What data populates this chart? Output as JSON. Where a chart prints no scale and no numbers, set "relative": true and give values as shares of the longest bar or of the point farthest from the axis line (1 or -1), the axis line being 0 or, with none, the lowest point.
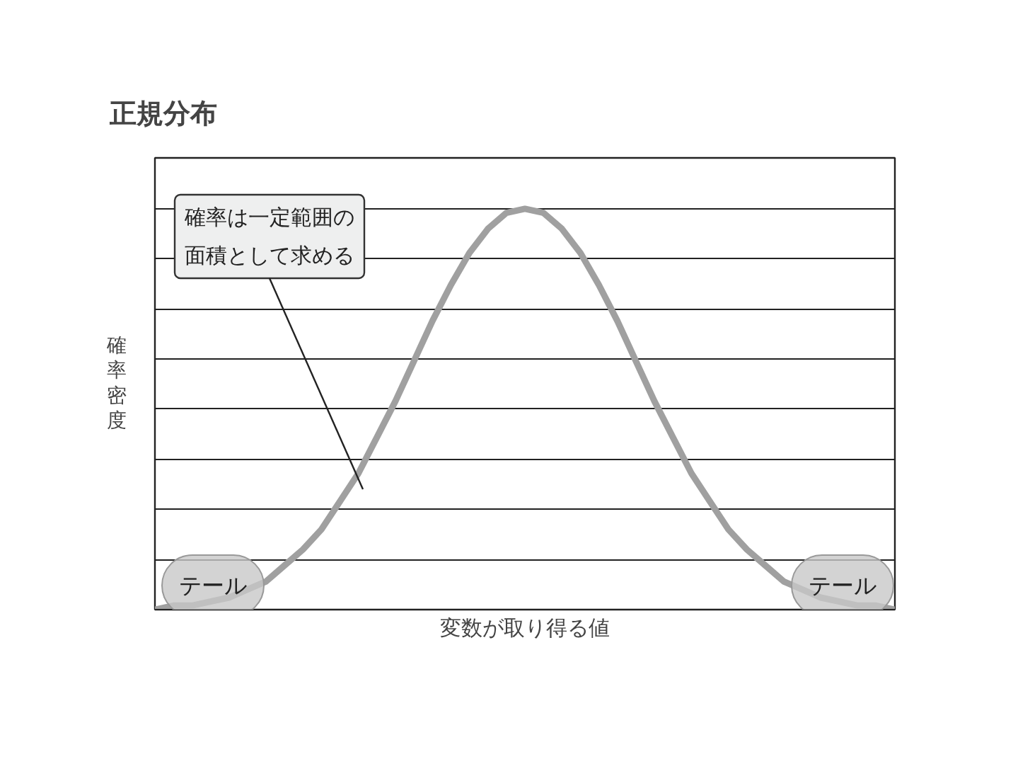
{
  "chart_data": {
    "type": "line",
    "title": "正規分布",
    "ylabel": "確率密度",
    "xlabel": "変数が取り得る値",
    "relative": true,
    "grid": "y",
    "categories": [
      null,
      null,
      null,
      null,
      null,
      null,
      null,
      null,
      null,
      null,
      null,
      null,
      null,
      null,
      null,
      null,
      null,
      null,
      null,
      null,
      null,
      null,
      null,
      null,
      null,
      null,
      null,
      null,
      null,
      null,
      null,
      null,
      null,
      null,
      null,
      null,
      null,
      null,
      null,
      null,
      null
    ],
    "series": [
      {
        "color": "#a0a0a0",
        "values": [
          0.0,
          0.01,
          0.01,
          0.02,
          0.03,
          0.05,
          0.07,
          0.11,
          0.15,
          0.2,
          0.27,
          0.34,
          0.43,
          0.52,
          0.62,
          0.72,
          0.81,
          0.89,
          0.95,
          0.99,
          1.0,
          0.99,
          0.95,
          0.89,
          0.81,
          0.72,
          0.62,
          0.52,
          0.43,
          0.34,
          0.27,
          0.2,
          0.15,
          0.11,
          0.07,
          0.05,
          0.03,
          0.02,
          0.01,
          0.01,
          0.0
        ]
      }
    ],
    "annotations": [
      "確率は一定範囲の面積として求める",
      "テール",
      "テール"
    ],
    "marker": "none",
    "line_style": "solid"
  }
}
